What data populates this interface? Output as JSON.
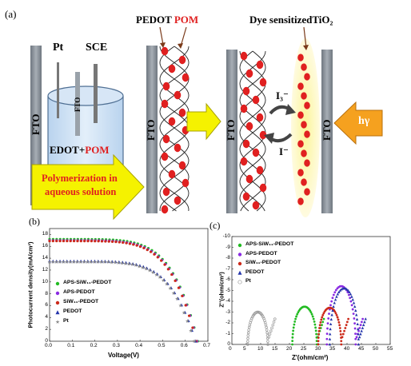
{
  "schematic": {
    "panel_label": "(a)",
    "pt_label": "Pt",
    "sce_label": "SCE",
    "fto_label": "FTO",
    "solution_label_part1": "EDOT+",
    "solution_label_part2": "POM",
    "arrow_text_line1": "Polymerization in",
    "arrow_text_line2": "aqueous solution",
    "pedot_label": "PEDOT",
    "pom_label": "POM",
    "dye_label": "Dye sensitizedTiO₂",
    "i3_label": "I₃⁻",
    "i_label": "I⁻",
    "light_label": "hγ",
    "colors": {
      "fto": "#808890",
      "arrow_yellow": "#f5f200",
      "arrow_orange": "#f5a11f",
      "pom": "#e02020",
      "dye": "#f5ee7a",
      "beaker": "#cfe1f3"
    }
  },
  "jv_panel": {
    "panel_label": "(b)",
    "xlabel": "Voltage(V)",
    "ylabel": "Photocurrent density(mA/cm²)",
    "xticks": [
      "0.0",
      "0.1",
      "0.2",
      "0.3",
      "0.4",
      "0.5",
      "0.6",
      "0.7"
    ],
    "yticks": [
      "0",
      "2",
      "4",
      "6",
      "8",
      "10",
      "12",
      "14",
      "16",
      "18"
    ],
    "legend": [
      "APS-SiW₁₁-PEDOT",
      "APS-PEDOT",
      "SiW₁₁-PEDOT",
      "PEDOT",
      "Pt"
    ]
  },
  "eis_panel": {
    "panel_label": "(c)",
    "xlabel": "Z'(ohm/cm²)",
    "ylabel": "Z''(ohm/cm²)",
    "xticks": [
      "0",
      "5",
      "10",
      "15",
      "20",
      "25",
      "30",
      "35",
      "40",
      "45",
      "50",
      "55"
    ],
    "yticks": [
      "0",
      "-1",
      "-2",
      "-3",
      "-4",
      "-5",
      "-6",
      "-7",
      "-8",
      "-9",
      "-10"
    ],
    "legend": [
      "APS-SiW₁₁-PEDOT",
      "APS-PEDOT",
      "SiW₁₁-PEDOT",
      "PEDOT",
      "Pt"
    ]
  },
  "chart_data": [
    {
      "type": "line",
      "title": "",
      "xlabel": "Voltage(V)",
      "ylabel": "Photocurrent density(mA/cm²)",
      "xlim": [
        0,
        0.7
      ],
      "ylim": [
        0,
        19
      ],
      "legend_position": "bottom-left",
      "series": [
        {
          "name": "APS-SiW₁₁-PEDOT",
          "color": "#22bb22",
          "marker": "circle",
          "jsc": 17.2,
          "voc": 0.655
        },
        {
          "name": "APS-PEDOT",
          "color": "#8a2be2",
          "marker": "circle",
          "jsc": 17.0,
          "voc": 0.652
        },
        {
          "name": "SiW₁₁-PEDOT",
          "color": "#cc2a1a",
          "marker": "circle",
          "jsc": 16.9,
          "voc": 0.648
        },
        {
          "name": "PEDOT",
          "color": "#2233aa",
          "marker": "triangle",
          "jsc": 13.5,
          "voc": 0.645
        },
        {
          "name": "Pt",
          "color": "#888888",
          "marker": "star",
          "jsc": 13.4,
          "voc": 0.64
        }
      ]
    },
    {
      "type": "scatter",
      "title": "",
      "xlabel": "Z'(ohm/cm²)",
      "ylabel": "Z''(ohm/cm²)",
      "xlim": [
        0,
        55
      ],
      "ylim": [
        0,
        -10
      ],
      "legend_position": "top-left",
      "series": [
        {
          "name": "APS-SiW₁₁-PEDOT",
          "color": "#22bb22",
          "marker": "circle",
          "x_start": 21,
          "x_valley": 29.5,
          "peak": -3.5
        },
        {
          "name": "APS-PEDOT",
          "color": "#8a2be2",
          "marker": "circle",
          "x_start": 33,
          "x_valley": 43,
          "peak": -5.4
        },
        {
          "name": "SiW₁₁-PEDOT",
          "color": "#cc2a1a",
          "marker": "circle",
          "x_start": 30,
          "x_valley": 38,
          "peak": -3.4
        },
        {
          "name": "PEDOT",
          "color": "#2233aa",
          "marker": "triangle",
          "x_start": 34,
          "x_valley": 44,
          "peak": -5.2
        },
        {
          "name": "Pt",
          "color": "#999999",
          "marker": "open-circle",
          "x_start": 5.5,
          "x_valley": 12.5,
          "peak": -3.0
        }
      ]
    }
  ]
}
